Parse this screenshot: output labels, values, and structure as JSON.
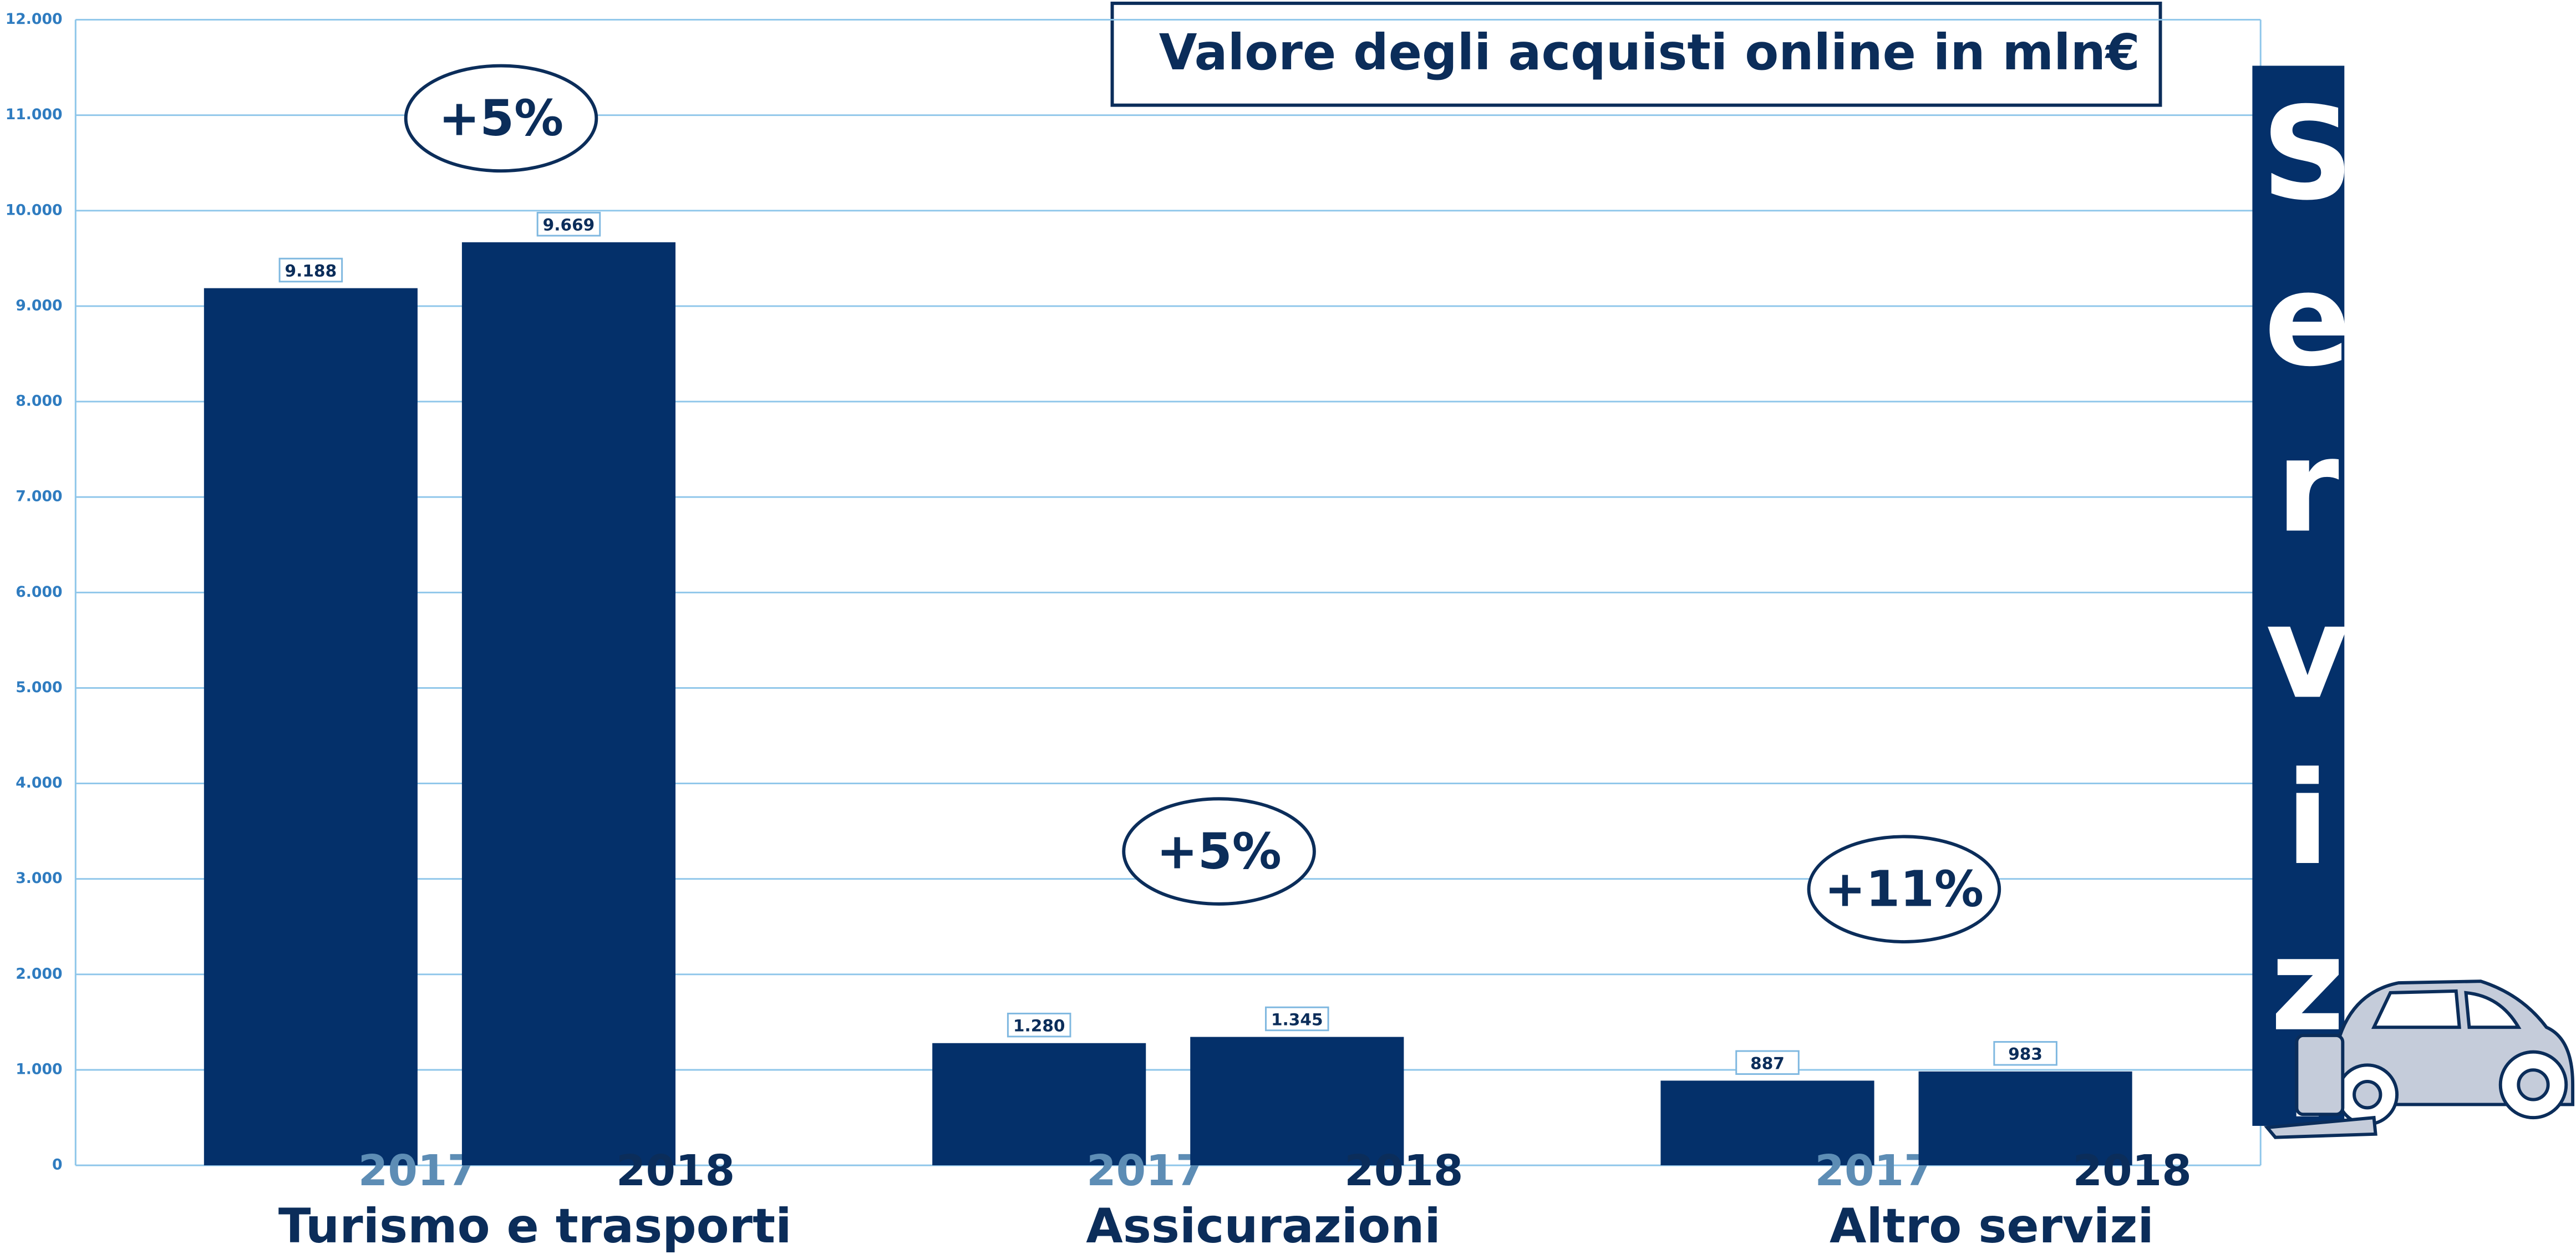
{
  "chart_data": {
    "type": "bar",
    "title": "Valore degli acquisti online in mln€",
    "side_title": "Servizi",
    "categories": [
      "Turismo e trasporti",
      "Assicurazioni",
      "Altro servizi"
    ],
    "series": [
      {
        "name": "2017",
        "color": "#04306a",
        "label_color": "#5d8db5",
        "values": [
          9188,
          1280,
          887
        ],
        "value_labels": [
          "9.188",
          "1.280",
          "887"
        ]
      },
      {
        "name": "2018",
        "color": "#04306a",
        "label_color": "#0b2d5a",
        "values": [
          9669,
          1345,
          983
        ],
        "value_labels": [
          "9.669",
          "1.345",
          "983"
        ]
      }
    ],
    "annotations": [
      "+5%",
      "+5%",
      "+11%"
    ],
    "ylim": [
      0,
      12000
    ],
    "yticks": [
      0,
      {
        "value": 1000,
        "label": "1.000"
      },
      {
        "value": 2000,
        "label": "2.000"
      },
      {
        "value": 3000,
        "label": "3.000"
      },
      {
        "value": 4000,
        "label": "4.000"
      },
      {
        "value": 5000,
        "label": "5.000"
      },
      {
        "value": 6000,
        "label": "6.000"
      },
      {
        "value": 7000,
        "label": "7.000"
      },
      {
        "value": 8000,
        "label": "8.000"
      },
      {
        "value": 9000,
        "label": "9.000"
      },
      {
        "value": 10000,
        "label": "10.000"
      },
      {
        "value": 11000,
        "label": "11.000"
      },
      {
        "value": 12000,
        "label": "12.000"
      }
    ],
    "grid": true
  }
}
